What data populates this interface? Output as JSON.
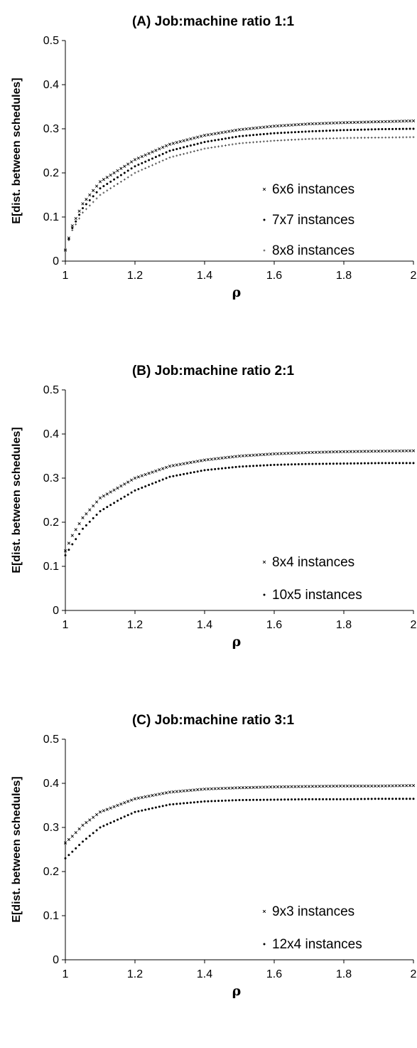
{
  "chart_data": [
    {
      "type": "scatter",
      "title": "(A) Job:machine ratio 1:1",
      "xlabel": "ρ",
      "ylabel": "E[dist. between schedules]",
      "xlim": [
        1,
        2
      ],
      "ylim": [
        0,
        0.5
      ],
      "xticks": [
        "1",
        "1.2",
        "1.4",
        "1.6",
        "1.8",
        "2"
      ],
      "yticks": [
        "0",
        "0.1",
        "0.2",
        "0.3",
        "0.4",
        "0.5"
      ],
      "grid": false,
      "legend_position": "right",
      "series": [
        {
          "name": "6x6 instances",
          "marker": "x",
          "points": [
            [
              1.0,
              0.025
            ],
            [
              1.02,
              0.08
            ],
            [
              1.05,
              0.13
            ],
            [
              1.1,
              0.18
            ],
            [
              1.2,
              0.23
            ],
            [
              1.3,
              0.265
            ],
            [
              1.4,
              0.285
            ],
            [
              1.5,
              0.298
            ],
            [
              1.6,
              0.306
            ],
            [
              1.7,
              0.311
            ],
            [
              1.8,
              0.314
            ],
            [
              1.9,
              0.316
            ],
            [
              2.0,
              0.318
            ]
          ]
        },
        {
          "name": "7x7 instances",
          "marker": "dot",
          "points": [
            [
              1.0,
              0.025
            ],
            [
              1.02,
              0.075
            ],
            [
              1.05,
              0.12
            ],
            [
              1.1,
              0.165
            ],
            [
              1.2,
              0.215
            ],
            [
              1.3,
              0.25
            ],
            [
              1.4,
              0.27
            ],
            [
              1.5,
              0.283
            ],
            [
              1.6,
              0.29
            ],
            [
              1.7,
              0.294
            ],
            [
              1.8,
              0.297
            ],
            [
              1.9,
              0.299
            ],
            [
              2.0,
              0.3
            ]
          ]
        },
        {
          "name": "8x8 instances",
          "marker": "plus",
          "points": [
            [
              1.0,
              0.025
            ],
            [
              1.02,
              0.07
            ],
            [
              1.05,
              0.11
            ],
            [
              1.1,
              0.15
            ],
            [
              1.2,
              0.2
            ],
            [
              1.3,
              0.235
            ],
            [
              1.4,
              0.255
            ],
            [
              1.5,
              0.267
            ],
            [
              1.6,
              0.273
            ],
            [
              1.7,
              0.277
            ],
            [
              1.8,
              0.279
            ],
            [
              1.9,
              0.28
            ],
            [
              2.0,
              0.281
            ]
          ]
        }
      ]
    },
    {
      "type": "scatter",
      "title": "(B) Job:machine ratio 2:1",
      "xlabel": "ρ",
      "ylabel": "E[dist. between schedules]",
      "xlim": [
        1,
        2
      ],
      "ylim": [
        0,
        0.5
      ],
      "xticks": [
        "1",
        "1.2",
        "1.4",
        "1.6",
        "1.8",
        "2"
      ],
      "yticks": [
        "0",
        "0.1",
        "0.2",
        "0.3",
        "0.4",
        "0.5"
      ],
      "grid": false,
      "legend_position": "right",
      "series": [
        {
          "name": "8x4 instances",
          "marker": "x",
          "points": [
            [
              1.0,
              0.135
            ],
            [
              1.02,
              0.17
            ],
            [
              1.05,
              0.21
            ],
            [
              1.1,
              0.255
            ],
            [
              1.2,
              0.3
            ],
            [
              1.3,
              0.327
            ],
            [
              1.4,
              0.341
            ],
            [
              1.5,
              0.35
            ],
            [
              1.6,
              0.355
            ],
            [
              1.7,
              0.358
            ],
            [
              1.8,
              0.36
            ],
            [
              1.9,
              0.361
            ],
            [
              2.0,
              0.362
            ]
          ]
        },
        {
          "name": "10x5 instances",
          "marker": "dot",
          "points": [
            [
              1.0,
              0.125
            ],
            [
              1.02,
              0.15
            ],
            [
              1.05,
              0.185
            ],
            [
              1.1,
              0.225
            ],
            [
              1.2,
              0.272
            ],
            [
              1.3,
              0.303
            ],
            [
              1.4,
              0.318
            ],
            [
              1.5,
              0.326
            ],
            [
              1.6,
              0.33
            ],
            [
              1.7,
              0.332
            ],
            [
              1.8,
              0.333
            ],
            [
              1.9,
              0.334
            ],
            [
              2.0,
              0.334
            ]
          ]
        }
      ]
    },
    {
      "type": "scatter",
      "title": "(C) Job:machine ratio 3:1",
      "xlabel": "ρ",
      "ylabel": "E[dist. between schedules]",
      "xlim": [
        1,
        2
      ],
      "ylim": [
        0,
        0.5
      ],
      "xticks": [
        "1",
        "1.2",
        "1.4",
        "1.6",
        "1.8",
        "2"
      ],
      "yticks": [
        "0",
        "0.1",
        "0.2",
        "0.3",
        "0.4",
        "0.5"
      ],
      "grid": false,
      "legend_position": "right",
      "series": [
        {
          "name": "9x3 instances",
          "marker": "x",
          "points": [
            [
              1.0,
              0.265
            ],
            [
              1.02,
              0.28
            ],
            [
              1.05,
              0.305
            ],
            [
              1.1,
              0.335
            ],
            [
              1.2,
              0.365
            ],
            [
              1.3,
              0.38
            ],
            [
              1.4,
              0.387
            ],
            [
              1.5,
              0.39
            ],
            [
              1.6,
              0.392
            ],
            [
              1.7,
              0.393
            ],
            [
              1.8,
              0.394
            ],
            [
              1.9,
              0.394
            ],
            [
              2.0,
              0.395
            ]
          ]
        },
        {
          "name": "12x4 instances",
          "marker": "dot",
          "points": [
            [
              1.0,
              0.23
            ],
            [
              1.02,
              0.245
            ],
            [
              1.05,
              0.268
            ],
            [
              1.1,
              0.3
            ],
            [
              1.2,
              0.335
            ],
            [
              1.3,
              0.352
            ],
            [
              1.4,
              0.359
            ],
            [
              1.5,
              0.362
            ],
            [
              1.6,
              0.363
            ],
            [
              1.7,
              0.364
            ],
            [
              1.8,
              0.364
            ],
            [
              1.9,
              0.365
            ],
            [
              2.0,
              0.365
            ]
          ]
        }
      ]
    }
  ]
}
